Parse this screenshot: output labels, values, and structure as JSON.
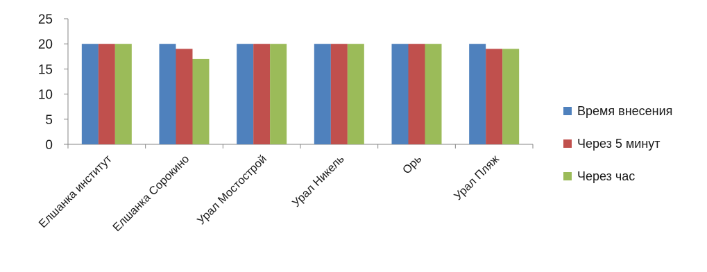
{
  "chart_data": {
    "type": "bar",
    "title": "",
    "xlabel": "",
    "ylabel": "",
    "ylim": [
      0,
      25
    ],
    "yticks": [
      0,
      5,
      10,
      15,
      20,
      25
    ],
    "grid": false,
    "legend_position": "right",
    "categories": [
      "Елшанка институт",
      "Елшанка Сорокино",
      "Урал Мостострой",
      "Урал Никель",
      "Орь",
      "Урал Пляж"
    ],
    "series": [
      {
        "name": "Время внесения",
        "color": "#4f81bd",
        "values": [
          20,
          20,
          20,
          20,
          20,
          20
        ]
      },
      {
        "name": "Через 5 минут",
        "color": "#c0504d",
        "values": [
          20,
          19,
          20,
          20,
          20,
          19
        ]
      },
      {
        "name": "Через час",
        "color": "#9bbb59",
        "values": [
          20,
          17,
          20,
          20,
          20,
          19
        ]
      }
    ]
  }
}
